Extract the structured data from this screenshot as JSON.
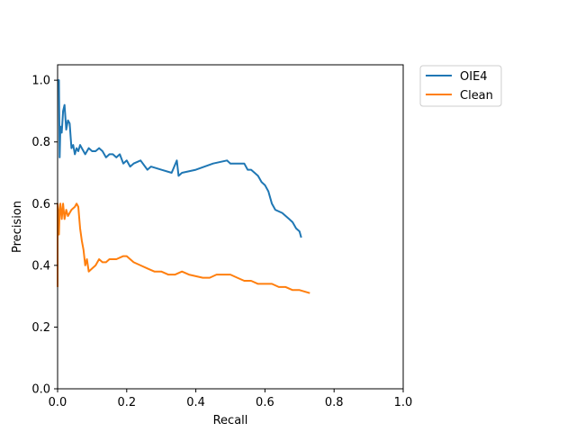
{
  "chart_data": {
    "type": "line",
    "xlabel": "Recall",
    "ylabel": "Precision",
    "xlim": [
      0,
      1
    ],
    "ylim": [
      0,
      1.05
    ],
    "xticks": [
      0.0,
      0.2,
      0.4,
      0.6,
      0.8,
      1.0
    ],
    "yticks": [
      0.0,
      0.2,
      0.4,
      0.6,
      0.8,
      1.0
    ],
    "xtick_labels": [
      "0.0",
      "0.2",
      "0.4",
      "0.6",
      "0.8",
      "1.0"
    ],
    "ytick_labels": [
      "0.0",
      "0.2",
      "0.4",
      "0.6",
      "0.8",
      "1.0"
    ],
    "grid": false,
    "legend_position": "outside-top-right",
    "series": [
      {
        "name": "OIE4",
        "color": "#1f77b4",
        "x": [
          0.0,
          0.004,
          0.006,
          0.008,
          0.012,
          0.016,
          0.02,
          0.025,
          0.03,
          0.035,
          0.04,
          0.045,
          0.05,
          0.055,
          0.06,
          0.065,
          0.07,
          0.08,
          0.09,
          0.1,
          0.11,
          0.12,
          0.13,
          0.14,
          0.15,
          0.16,
          0.17,
          0.18,
          0.19,
          0.2,
          0.21,
          0.22,
          0.24,
          0.26,
          0.27,
          0.3,
          0.33,
          0.345,
          0.35,
          0.36,
          0.4,
          0.45,
          0.49,
          0.5,
          0.52,
          0.54,
          0.55,
          0.56,
          0.57,
          0.58,
          0.59,
          0.6,
          0.61,
          0.62,
          0.63,
          0.65,
          0.67,
          0.68,
          0.69,
          0.7,
          0.705
        ],
        "y": [
          1.0,
          1.0,
          0.75,
          0.85,
          0.83,
          0.9,
          0.92,
          0.84,
          0.87,
          0.86,
          0.78,
          0.79,
          0.76,
          0.78,
          0.77,
          0.79,
          0.78,
          0.76,
          0.78,
          0.77,
          0.77,
          0.78,
          0.77,
          0.75,
          0.76,
          0.76,
          0.75,
          0.76,
          0.73,
          0.74,
          0.72,
          0.73,
          0.74,
          0.71,
          0.72,
          0.71,
          0.7,
          0.74,
          0.69,
          0.7,
          0.71,
          0.73,
          0.74,
          0.73,
          0.73,
          0.73,
          0.71,
          0.71,
          0.7,
          0.69,
          0.67,
          0.66,
          0.64,
          0.6,
          0.58,
          0.57,
          0.55,
          0.54,
          0.52,
          0.51,
          0.49
        ]
      },
      {
        "name": "Clean",
        "color": "#ff7f0e",
        "x": [
          0.0,
          0.0,
          0.004,
          0.006,
          0.008,
          0.012,
          0.016,
          0.02,
          0.025,
          0.03,
          0.035,
          0.04,
          0.05,
          0.055,
          0.06,
          0.065,
          0.07,
          0.075,
          0.08,
          0.085,
          0.09,
          0.1,
          0.11,
          0.12,
          0.13,
          0.14,
          0.15,
          0.17,
          0.19,
          0.2,
          0.21,
          0.22,
          0.24,
          0.26,
          0.28,
          0.3,
          0.32,
          0.34,
          0.36,
          0.38,
          0.42,
          0.44,
          0.46,
          0.48,
          0.5,
          0.52,
          0.54,
          0.56,
          0.58,
          0.6,
          0.62,
          0.64,
          0.66,
          0.68,
          0.7,
          0.73
        ],
        "y": [
          0.33,
          0.6,
          0.5,
          0.58,
          0.6,
          0.55,
          0.6,
          0.55,
          0.58,
          0.56,
          0.57,
          0.58,
          0.59,
          0.6,
          0.59,
          0.52,
          0.48,
          0.45,
          0.4,
          0.42,
          0.38,
          0.39,
          0.4,
          0.42,
          0.41,
          0.41,
          0.42,
          0.42,
          0.43,
          0.43,
          0.42,
          0.41,
          0.4,
          0.39,
          0.38,
          0.38,
          0.37,
          0.37,
          0.38,
          0.37,
          0.36,
          0.36,
          0.37,
          0.37,
          0.37,
          0.36,
          0.35,
          0.35,
          0.34,
          0.34,
          0.34,
          0.33,
          0.33,
          0.32,
          0.32,
          0.31
        ]
      }
    ]
  }
}
